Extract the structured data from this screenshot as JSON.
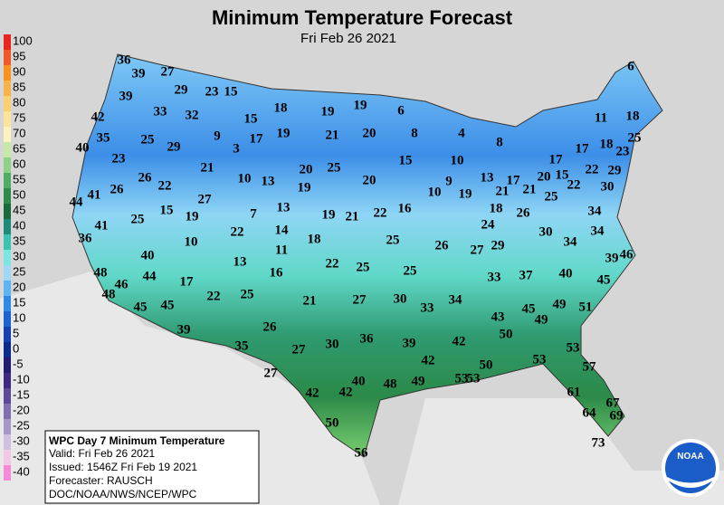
{
  "title": "Minimum Temperature Forecast",
  "subtitle": "Fri Feb 26 2021",
  "colorbar": {
    "values": [
      100,
      95,
      90,
      85,
      80,
      75,
      70,
      65,
      60,
      55,
      50,
      45,
      40,
      35,
      30,
      25,
      20,
      15,
      10,
      5,
      0,
      -5,
      -10,
      -15,
      -20,
      -25,
      -30,
      -35,
      -40
    ],
    "colors": [
      "#e8251f",
      "#f05a28",
      "#f7921e",
      "#f9b24a",
      "#fbd06f",
      "#fde49a",
      "#fef3c0",
      "#c7e9a8",
      "#8fd18a",
      "#4fae63",
      "#2e8b4a",
      "#1a6a3a",
      "#1e8a7a",
      "#3cc2b0",
      "#7ee6e0",
      "#9fd8f5",
      "#5eb4f2",
      "#2f8ae6",
      "#1e64d0",
      "#1440b0",
      "#0c2a8a",
      "#241a70",
      "#3c2a80",
      "#5a4a98",
      "#8070b0",
      "#a898c8",
      "#cfc0e0",
      "#f0c8e8",
      "#f58ad8"
    ]
  },
  "map_labels": [
    36,
    39,
    27,
    29,
    23,
    15,
    39,
    33,
    18,
    19,
    19,
    6,
    42,
    32,
    15,
    9,
    17,
    19,
    21,
    20,
    8,
    4,
    8,
    11,
    18,
    6,
    35,
    25,
    29,
    3,
    40,
    23,
    21,
    20,
    25,
    15,
    10,
    13,
    17,
    21,
    20,
    15,
    22,
    29,
    17,
    17,
    18,
    23,
    25,
    30,
    26,
    22,
    10,
    13,
    19,
    20,
    10,
    9,
    19,
    21,
    25,
    22,
    41,
    44,
    26,
    27,
    13,
    7,
    19,
    21,
    22,
    16,
    18,
    34,
    24,
    26,
    30,
    34,
    34,
    15,
    19,
    25,
    41,
    36,
    22,
    14,
    18,
    25,
    26,
    27,
    29,
    46,
    39,
    10,
    11,
    40,
    13,
    22,
    25,
    25,
    33,
    37,
    40,
    45,
    48,
    46,
    44,
    17,
    16,
    48,
    45,
    45,
    22,
    25,
    21,
    27,
    30,
    33,
    34,
    43,
    45,
    49,
    49,
    51,
    39,
    26,
    36,
    39,
    42,
    50,
    35,
    27,
    30,
    53,
    42,
    50,
    53,
    27,
    57,
    42,
    42,
    40,
    48,
    49,
    53,
    53,
    61,
    67,
    64,
    69,
    50,
    73,
    56
  ],
  "info": {
    "title": "WPC Day 7 Minimum Temperature",
    "valid": "Valid: Fri Feb 26 2021",
    "issued": "Issued: 1546Z Fri Feb 19 2021",
    "forecaster": "Forecaster: RAUSCH",
    "agency": "DOC/NOAA/NWS/NCEP/WPC"
  },
  "logo": "NOAA"
}
